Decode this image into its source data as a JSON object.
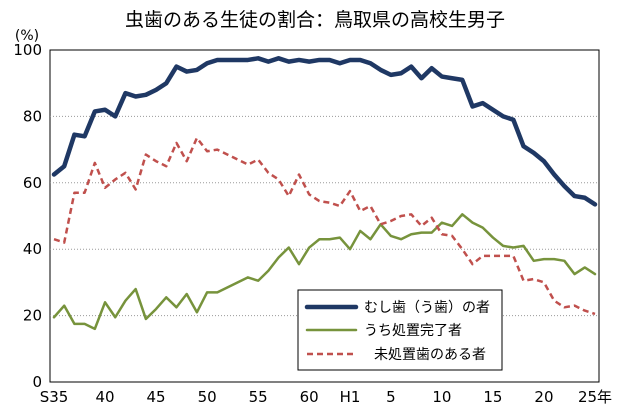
{
  "chart_data": {
    "type": "line",
    "title": "虫歯のある生徒の割合：鳥取県の高校生男子",
    "ylabel": "(%)",
    "ylim": [
      0,
      100
    ],
    "yticks": [
      0,
      20,
      40,
      60,
      80,
      100
    ],
    "grid": true,
    "legend_position": "bottom-center",
    "x": [
      "S35",
      "36",
      "37",
      "38",
      "39",
      "40",
      "41",
      "42",
      "43",
      "44",
      "45",
      "46",
      "47",
      "48",
      "49",
      "50",
      "51",
      "52",
      "53",
      "54",
      "55",
      "56",
      "57",
      "58",
      "59",
      "60",
      "61",
      "62",
      "63",
      "H1",
      "2",
      "3",
      "4",
      "5",
      "6",
      "7",
      "8",
      "9",
      "10",
      "11",
      "12",
      "13",
      "14",
      "15",
      "16",
      "17",
      "18",
      "19",
      "20",
      "21",
      "22",
      "23",
      "24",
      "25"
    ],
    "xticks": [
      {
        "x": "S35",
        "label": "S35"
      },
      {
        "x": "40",
        "label": "40"
      },
      {
        "x": "45",
        "label": "45"
      },
      {
        "x": "50",
        "label": "50"
      },
      {
        "x": "55",
        "label": "55"
      },
      {
        "x": "60",
        "label": "60"
      },
      {
        "x": "H1",
        "label": "H1"
      },
      {
        "x": "5",
        "label": "5"
      },
      {
        "x": "10",
        "label": "10"
      },
      {
        "x": "15",
        "label": "15"
      },
      {
        "x": "20",
        "label": "20"
      },
      {
        "x": "25",
        "label": "25年"
      }
    ],
    "series": [
      {
        "name": "むし歯（う歯）の者",
        "color": "#1f3864",
        "style": "solid-thick",
        "values": [
          62.5,
          65,
          74.5,
          74,
          81.5,
          82,
          80,
          87,
          86,
          86.5,
          88,
          90,
          95,
          93.5,
          94,
          96,
          97,
          97,
          97,
          97,
          97.5,
          96.5,
          97.5,
          96.5,
          97,
          96.5,
          97,
          97,
          96,
          97,
          97,
          96,
          94,
          92.5,
          93,
          95,
          91.5,
          94.5,
          92,
          91.5,
          91,
          83,
          84,
          82,
          80,
          79,
          71,
          69,
          66.5,
          62.5,
          59,
          56,
          55.5,
          53.5
        ]
      },
      {
        "name": "うち処置完了者",
        "color": "#77933c",
        "style": "solid",
        "values": [
          19.5,
          23,
          17.5,
          17.5,
          16,
          24,
          19.5,
          24.5,
          28,
          19,
          22,
          25.5,
          22.5,
          26.5,
          21,
          27,
          27,
          28.5,
          30,
          31.5,
          30.5,
          33.5,
          37.5,
          40.5,
          35.5,
          40.5,
          43,
          43,
          43.5,
          40,
          45.5,
          43,
          47.5,
          44,
          43,
          44.5,
          45,
          45,
          48,
          47,
          50.5,
          48,
          46.5,
          43.5,
          41,
          40.5,
          41,
          36.5,
          37,
          37,
          36.5,
          32.5,
          34.5,
          32.5
        ]
      },
      {
        "name": "未処置歯のある者",
        "color": "#c0504d",
        "style": "dashed",
        "values": [
          43,
          42,
          57,
          57,
          66,
          58.5,
          61,
          63,
          58,
          68.5,
          66.5,
          65,
          72,
          66.5,
          73.5,
          69.5,
          70,
          68.5,
          67,
          65.5,
          67,
          63,
          61,
          56,
          62.5,
          56.5,
          54.5,
          54,
          53,
          57.5,
          51.5,
          53,
          47.5,
          48.5,
          50,
          50.5,
          47,
          49.5,
          44.5,
          44,
          40,
          35.5,
          38,
          38,
          38,
          38,
          30.5,
          31,
          30,
          24.5,
          22.5,
          23,
          21.5,
          20.5
        ]
      }
    ]
  }
}
